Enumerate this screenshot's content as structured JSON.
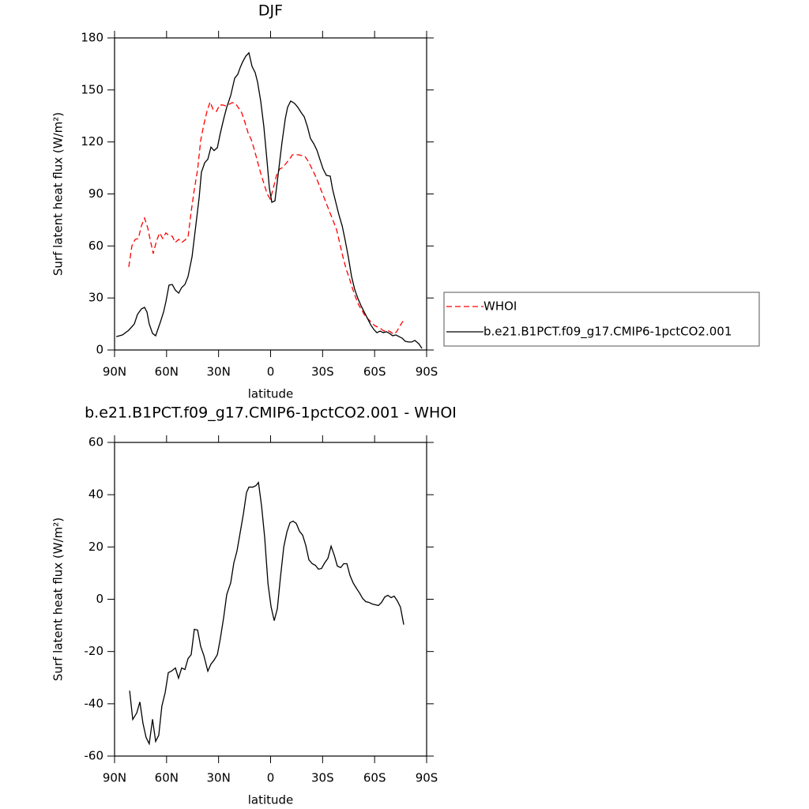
{
  "chart_data": [
    {
      "type": "line",
      "title": "DJF",
      "xlabel": "latitude",
      "ylabel": "Surf latent heat flux (W/m²)",
      "xlim": [
        90,
        -90
      ],
      "xticks": [
        {
          "value": 90,
          "label": "90N"
        },
        {
          "value": 60,
          "label": "60N"
        },
        {
          "value": 30,
          "label": "30N"
        },
        0,
        {
          "value": -30,
          "label": "30S"
        },
        {
          "value": -60,
          "label": "60S"
        },
        {
          "value": -90,
          "label": "90S"
        }
      ],
      "ylim": [
        0,
        180
      ],
      "yticks": [
        0,
        30,
        60,
        90,
        120,
        150,
        180
      ],
      "legend": "right",
      "series": [
        {
          "name": "WHOI",
          "color": "#ff0000",
          "line_style": "dashed",
          "x": [
            81.8,
            80,
            78.1,
            76.3,
            74.5,
            72.7,
            70.9,
            69.5,
            67.7,
            65.8,
            64,
            62.2,
            60.4,
            58.6,
            56.7,
            55,
            53,
            51.3,
            49.4,
            47.6,
            45.8,
            44,
            42.1,
            40.3,
            38.5,
            36.7,
            34.9,
            33.1,
            31.2,
            29.4,
            27.6,
            25.7,
            23.9,
            22.1,
            20.3,
            18.4,
            16.6,
            14.8,
            13,
            11.1,
            9.3,
            7.5,
            5.7,
            3.9,
            2,
            0.2,
            -1.6,
            -3.4,
            -5.3,
            -7.1,
            -8.9,
            -10.7,
            -12.6,
            -14.4,
            -16.2,
            -18,
            -19.8,
            -21.7,
            -23.5,
            -25.3,
            -27.1,
            -29,
            -30.8,
            -32.6,
            -34.4,
            -36.2,
            -38.1,
            -39.9,
            -41.7,
            -43.5,
            -45.4,
            -47.2,
            -49,
            -50.8,
            -52.7,
            -54.5,
            -56.3,
            -58.1,
            -60,
            -61.8,
            -63.6,
            -65.4,
            -67.2,
            -69.1,
            -70.9,
            -72.7,
            -74.5,
            -76.8
          ],
          "values": [
            47.9,
            60,
            63.8,
            64.3,
            71.6,
            76.1,
            70.6,
            63.8,
            55.6,
            62.9,
            67.5,
            64.3,
            67.5,
            66,
            65.6,
            62,
            63.8,
            62,
            63.4,
            65.2,
            79.8,
            92.5,
            104,
            121,
            130,
            137.6,
            143,
            138.6,
            137.6,
            141.3,
            141.3,
            140.8,
            141.7,
            142.7,
            142.2,
            139.5,
            136.7,
            131.3,
            125.3,
            121.2,
            115.3,
            108.5,
            102,
            96.2,
            90.2,
            87,
            93.4,
            100.7,
            104.4,
            105.3,
            107.6,
            109.8,
            112.6,
            112.6,
            112.6,
            112.1,
            111.7,
            108.9,
            105.3,
            101.6,
            97.5,
            92.5,
            88,
            83.4,
            78.8,
            74.3,
            69.3,
            61.5,
            53.8,
            47,
            41.5,
            35.6,
            30.5,
            26,
            22.8,
            19.6,
            17.8,
            16,
            14.1,
            13.2,
            12.3,
            10.9,
            11.4,
            10.5,
            9.1,
            10.5,
            13.7,
            17.3
          ]
        },
        {
          "name": "b.e21.B1PCT.f09_g17.CMIP6-1pctCO2.001",
          "color": "#000000",
          "line_style": "solid",
          "x": [
            89,
            85.4,
            81.8,
            78.6,
            76.8,
            74.5,
            72.7,
            71.3,
            70,
            68.1,
            66.3,
            63.6,
            61.7,
            60.4,
            58.6,
            56.7,
            55,
            53,
            51.3,
            49.4,
            47.6,
            45.3,
            43,
            41.2,
            39.9,
            38,
            36.2,
            34.4,
            32.6,
            30.7,
            29,
            27,
            25.3,
            23,
            20.7,
            18.9,
            17.5,
            16.2,
            14.3,
            12.5,
            10.7,
            8.9,
            7.5,
            5.7,
            3.9,
            2,
            0.7,
            -0.7,
            -2.5,
            -4.4,
            -6.6,
            -8.5,
            -9.8,
            -11.6,
            -13.9,
            -15.7,
            -17.6,
            -19.4,
            -21.2,
            -23,
            -24.9,
            -26.7,
            -28.5,
            -30.3,
            -32.2,
            -34.4,
            -35.8,
            -37.6,
            -39.4,
            -41.3,
            -43.1,
            -44.9,
            -46.7,
            -48.5,
            -50.4,
            -52.2,
            -54,
            -55.9,
            -57.7,
            -59.5,
            -61.3,
            -63.2,
            -65,
            -66.8,
            -68.6,
            -70.4,
            -72.3,
            -74.1,
            -75.9,
            -77.7,
            -79.6,
            -81.4,
            -83.2,
            -85.5,
            -87.3
          ],
          "values": [
            7.7,
            8.7,
            11.4,
            15,
            20.5,
            23.7,
            24.6,
            21.9,
            15,
            9.6,
            8.2,
            16,
            22,
            27.8,
            37.4,
            37.8,
            34.6,
            32.8,
            36,
            37.8,
            42.4,
            53.8,
            72.9,
            88,
            102.5,
            108,
            110,
            117,
            115,
            116.7,
            125,
            133.5,
            140,
            146.8,
            156.8,
            159,
            163,
            166,
            169.5,
            171.4,
            163.6,
            160,
            154.5,
            143.6,
            129,
            108.5,
            93.4,
            85.2,
            86,
            101.6,
            119.9,
            133.5,
            140,
            143.6,
            142.2,
            140,
            137,
            134.5,
            129,
            122,
            119,
            115.3,
            109.8,
            104.4,
            100.7,
            100.3,
            92.5,
            85.2,
            78,
            71.6,
            62.9,
            53.3,
            42.4,
            35,
            29.6,
            25.5,
            21.9,
            18.2,
            14.6,
            11.9,
            10,
            10.9,
            10,
            10.5,
            9.6,
            8.2,
            8.7,
            7.7,
            6.8,
            5,
            4.6,
            4.6,
            5.5,
            3.6,
            0.9
          ]
        }
      ]
    },
    {
      "type": "line",
      "title": "b.e21.B1PCT.f09_g17.CMIP6-1pctCO2.001 - WHOI",
      "xlabel": "latitude",
      "ylabel": "Surf latent heat flux (W/m²)",
      "xlim": [
        90,
        -90
      ],
      "xticks": [
        {
          "value": 90,
          "label": "90N"
        },
        {
          "value": 60,
          "label": "60N"
        },
        {
          "value": 30,
          "label": "30N"
        },
        0,
        {
          "value": -30,
          "label": "30S"
        },
        {
          "value": -60,
          "label": "60S"
        },
        {
          "value": -90,
          "label": "90S"
        }
      ],
      "ylim": [
        -60,
        60
      ],
      "yticks": [
        -60,
        -40,
        -20,
        0,
        20,
        40,
        60
      ],
      "series": [
        {
          "color": "#000000",
          "line_style": "solid",
          "x": [
            81.3,
            79.5,
            77.2,
            75.4,
            73.6,
            71.8,
            70,
            68.1,
            66.3,
            64.5,
            62.7,
            60.8,
            59,
            57.2,
            54.9,
            53.1,
            51.3,
            49.4,
            47.6,
            45.8,
            44,
            42.1,
            40.3,
            38.5,
            36.2,
            34.4,
            32.6,
            30.7,
            29,
            27,
            25.3,
            23,
            21.2,
            19.4,
            17.5,
            15.7,
            13.9,
            12.5,
            10.2,
            8.4,
            7,
            5.2,
            3.4,
            1.5,
            -0.3,
            -2.1,
            -3.9,
            -5.7,
            -7.6,
            -9.4,
            -11.2,
            -13,
            -14.8,
            -16.7,
            -18.5,
            -20.3,
            -22.1,
            -24,
            -25.8,
            -27.6,
            -29.4,
            -31.2,
            -33.1,
            -34.9,
            -36.7,
            -38.5,
            -40.4,
            -42.2,
            -44,
            -45.8,
            -47.6,
            -49.5,
            -51.3,
            -53.1,
            -54.9,
            -56.7,
            -58.6,
            -60.4,
            -62.2,
            -64,
            -65.9,
            -67.7,
            -69.5,
            -71.3,
            -73.1,
            -74.9,
            -76.8
          ],
          "values": [
            -35,
            -46,
            -43.5,
            -39.3,
            -47.5,
            -52.9,
            -55.3,
            -45.9,
            -54.4,
            -52,
            -40.8,
            -35.7,
            -28.1,
            -27.5,
            -26.3,
            -30.2,
            -26.3,
            -26.9,
            -22.7,
            -21.2,
            -11.5,
            -11.8,
            -18.1,
            -21.5,
            -27.5,
            -24.8,
            -23.3,
            -21.2,
            -15.1,
            -6.7,
            1.8,
            6.3,
            13.9,
            18.4,
            25.7,
            32.6,
            40.8,
            42.9,
            42.9,
            43.5,
            44.7,
            35.7,
            23.6,
            6,
            -3,
            -8.2,
            -3.6,
            8.5,
            20,
            25.7,
            29.3,
            29.9,
            29,
            26,
            24.5,
            20.6,
            15.1,
            13.6,
            13,
            11.5,
            11.8,
            13.9,
            15.7,
            20.3,
            16.9,
            12.7,
            12.1,
            13.6,
            13.6,
            9.1,
            6.3,
            4.2,
            2.4,
            0.3,
            -0.9,
            -1.2,
            -1.8,
            -2.1,
            -2.4,
            -1.2,
            0.9,
            1.5,
            0.6,
            1.2,
            -0.6,
            -3,
            -9.7
          ]
        }
      ]
    }
  ]
}
